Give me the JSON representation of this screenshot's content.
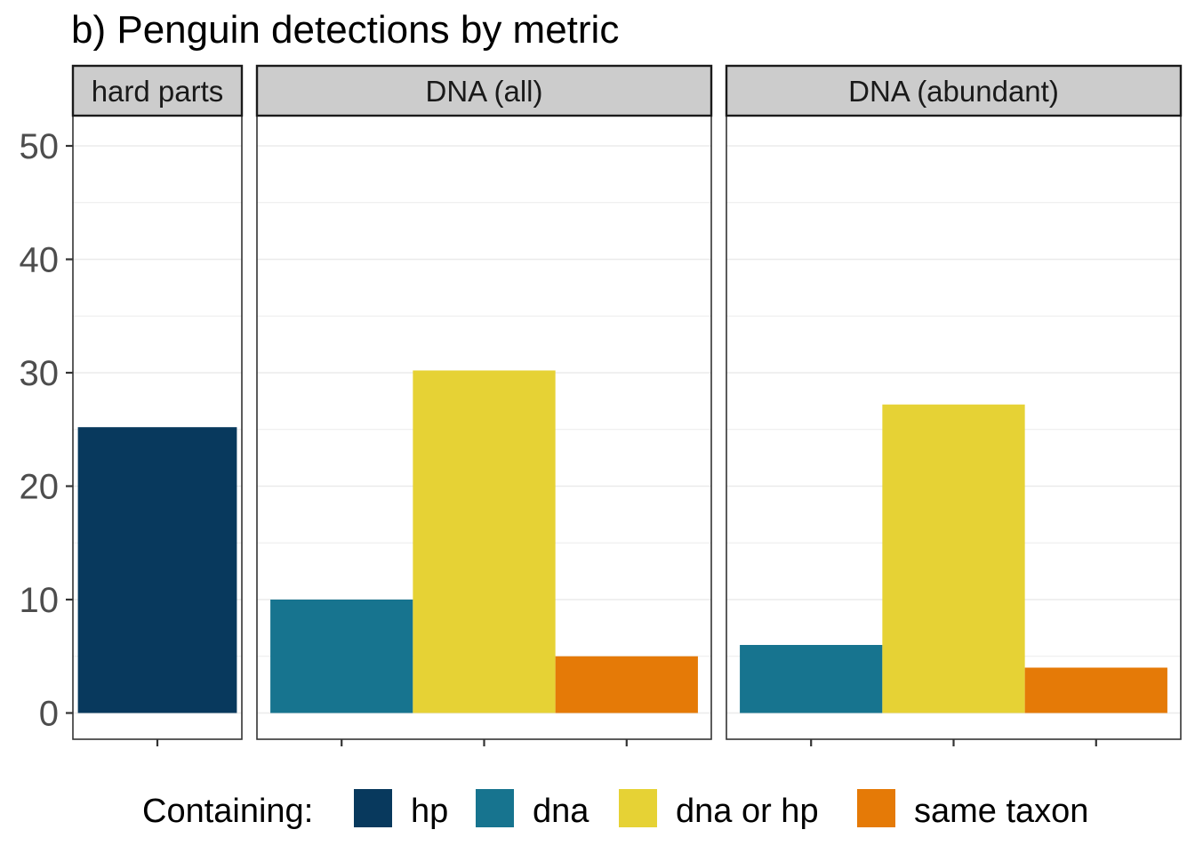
{
  "chart_data": {
    "type": "bar",
    "title": "b) Penguin detections by metric",
    "xlabel": "",
    "ylabel": "",
    "ylim": [
      0,
      52
    ],
    "yticks": [
      0,
      10,
      20,
      30,
      40,
      50
    ],
    "grid": true,
    "legend": {
      "position": "bottom",
      "title": "Containing:",
      "entries": [
        {
          "name": "hp",
          "color": "#08395d"
        },
        {
          "name": "dna",
          "color": "#17748f"
        },
        {
          "name": "dna or hp",
          "color": "#e6d235"
        },
        {
          "name": "same taxon",
          "color": "#e57a07"
        }
      ]
    },
    "facets": [
      {
        "label": "hard parts",
        "bars": [
          {
            "series": "hp",
            "value": 25.2
          }
        ]
      },
      {
        "label": "DNA (all)",
        "bars": [
          {
            "series": "dna",
            "value": 10
          },
          {
            "series": "dna or hp",
            "value": 30.2
          },
          {
            "series": "same taxon",
            "value": 5
          }
        ]
      },
      {
        "label": "DNA (abundant)",
        "bars": [
          {
            "series": "dna",
            "value": 6
          },
          {
            "series": "dna or hp",
            "value": 27.2
          },
          {
            "series": "same taxon",
            "value": 4
          }
        ]
      }
    ]
  }
}
